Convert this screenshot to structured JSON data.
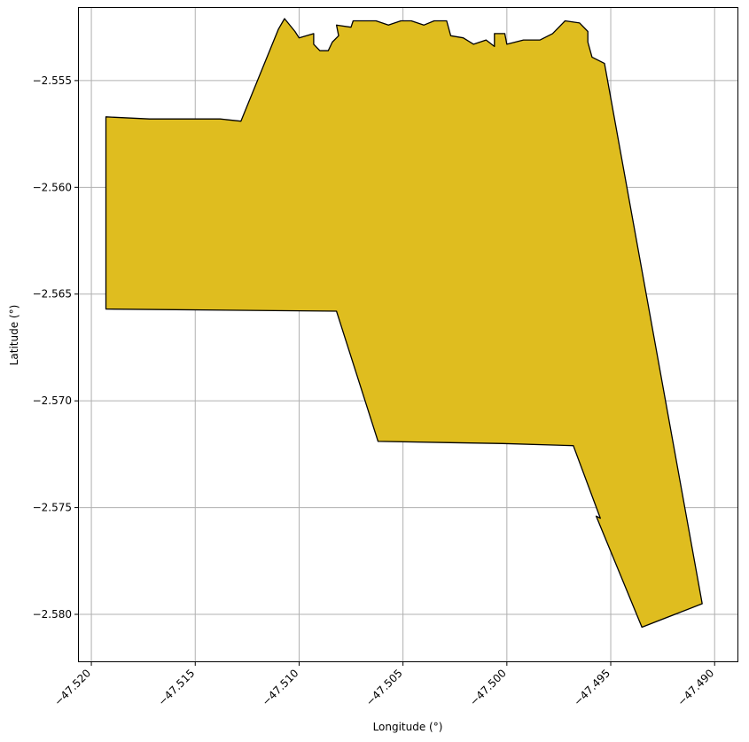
{
  "chart_data": {
    "type": "map",
    "xlabel": "Longitude (°)",
    "ylabel": "Latitude (°)",
    "xlim": [
      -47.5206,
      -47.4889
    ],
    "ylim": [
      -2.5822,
      -2.5516
    ],
    "x_ticks": [
      -47.52,
      -47.515,
      -47.51,
      -47.505,
      -47.5,
      -47.495,
      -47.49
    ],
    "x_tick_labels": [
      "−47.520",
      "−47.515",
      "−47.510",
      "−47.505",
      "−47.500",
      "−47.495",
      "−47.490"
    ],
    "y_ticks": [
      -2.555,
      -2.56,
      -2.565,
      -2.57,
      -2.575,
      -2.58
    ],
    "y_tick_labels": [
      "−2.555",
      "−2.560",
      "−2.565",
      "−2.570",
      "−2.575",
      "−2.580"
    ],
    "grid": true,
    "polygon_fill": "#dfbd1f",
    "polygon_edge": "#000000",
    "polygon": [
      [
        -47.5193,
        -2.5567
      ],
      [
        -47.5172,
        -2.5568
      ],
      [
        -47.5138,
        -2.5568
      ],
      [
        -47.5128,
        -2.5569
      ],
      [
        -47.511,
        -2.5526
      ],
      [
        -47.5107,
        -2.5521
      ],
      [
        -47.5102,
        -2.5527
      ],
      [
        -47.51,
        -2.553
      ],
      [
        -47.5093,
        -2.5528
      ],
      [
        -47.5093,
        -2.5533
      ],
      [
        -47.509,
        -2.5536
      ],
      [
        -47.5086,
        -2.5536
      ],
      [
        -47.5084,
        -2.5532
      ],
      [
        -47.5081,
        -2.5529
      ],
      [
        -47.5082,
        -2.5524
      ],
      [
        -47.5075,
        -2.5525
      ],
      [
        -47.5074,
        -2.5522
      ],
      [
        -47.5068,
        -2.5522
      ],
      [
        -47.5063,
        -2.5522
      ],
      [
        -47.5057,
        -2.5524
      ],
      [
        -47.5051,
        -2.5522
      ],
      [
        -47.5046,
        -2.5522
      ],
      [
        -47.504,
        -2.5524
      ],
      [
        -47.5035,
        -2.5522
      ],
      [
        -47.5029,
        -2.5522
      ],
      [
        -47.5027,
        -2.5529
      ],
      [
        -47.5021,
        -2.553
      ],
      [
        -47.5016,
        -2.5533
      ],
      [
        -47.501,
        -2.5531
      ],
      [
        -47.5006,
        -2.5534
      ],
      [
        -47.5006,
        -2.5528
      ],
      [
        -47.5001,
        -2.5528
      ],
      [
        -47.5,
        -2.5533
      ],
      [
        -47.4992,
        -2.5531
      ],
      [
        -47.4984,
        -2.5531
      ],
      [
        -47.4978,
        -2.5528
      ],
      [
        -47.4972,
        -2.5522
      ],
      [
        -47.4965,
        -2.5523
      ],
      [
        -47.4961,
        -2.5527
      ],
      [
        -47.4961,
        -2.5532
      ],
      [
        -47.4959,
        -2.5539
      ],
      [
        -47.4953,
        -2.5542
      ],
      [
        -47.4906,
        -2.5795
      ],
      [
        -47.4935,
        -2.5806
      ],
      [
        -47.4957,
        -2.5754
      ],
      [
        -47.4955,
        -2.5755
      ],
      [
        -47.4968,
        -2.5721
      ],
      [
        -47.5002,
        -2.572
      ],
      [
        -47.5062,
        -2.5719
      ],
      [
        -47.5082,
        -2.5658
      ],
      [
        -47.5193,
        -2.5657
      ],
      [
        -47.5193,
        -2.5567
      ]
    ]
  }
}
